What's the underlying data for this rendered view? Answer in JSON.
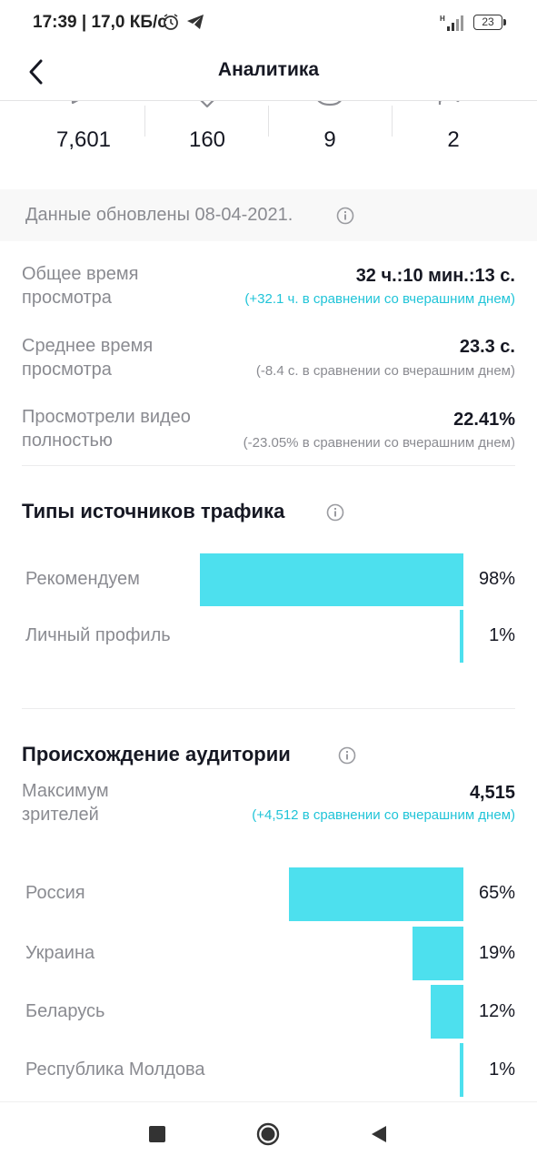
{
  "status_bar": {
    "time_speed": "17:39 | 17,0 КБ/с",
    "battery": "23",
    "icons": [
      "alarm-icon",
      "telegram-icon",
      "signal-icon",
      "battery-icon"
    ]
  },
  "header": {
    "title": "Аналитика",
    "back_icon": "chevron-left-icon"
  },
  "stats": [
    {
      "icon": "play-icon",
      "value": "7,601"
    },
    {
      "icon": "heart-icon",
      "value": "160"
    },
    {
      "icon": "comment-icon",
      "value": "9"
    },
    {
      "icon": "share-icon",
      "value": "2"
    }
  ],
  "updated": {
    "text": "Данные обновлены 08-04-2021."
  },
  "metrics": [
    {
      "label": "Общее время просмотра",
      "value": "32 ч.:10 мин.:13 с.",
      "change": "(+32.1 ч. в сравнении со вчерашним днем)",
      "trend": "positive"
    },
    {
      "label": "Среднее время просмотра",
      "value": "23.3 с.",
      "change": "(-8.4 с. в сравнении со вчерашним днем)",
      "trend": "negative"
    },
    {
      "label": "Просмотрели видео полностью",
      "value": "22.41%",
      "change": "(-23.05% в сравнении со вчерашним днем)",
      "trend": "negative"
    }
  ],
  "traffic": {
    "title": "Типы источников трафика",
    "items": [
      {
        "label": "Рекомендуем",
        "percent": "98%",
        "value": 98
      },
      {
        "label": "Личный профиль",
        "percent": "1%",
        "value": 1
      }
    ]
  },
  "audience": {
    "title": "Происхождение аудитории",
    "max_label": "Максимум зрителей",
    "max_value": "4,515",
    "max_change": "(+4,512 в сравнении со вчерашним днем)",
    "items": [
      {
        "label": "Россия",
        "percent": "65%",
        "value": 65
      },
      {
        "label": "Украина",
        "percent": "19%",
        "value": 19
      },
      {
        "label": "Беларусь",
        "percent": "12%",
        "value": 12
      },
      {
        "label": "Республика Молдова",
        "percent": "1%",
        "value": 1
      }
    ]
  },
  "colors": {
    "accent": "#4de0ee",
    "positive": "#20c4d8",
    "muted": "#8a8b91",
    "text": "#161823"
  },
  "nav": {
    "buttons": [
      "recents-square-icon",
      "home-circle-icon",
      "back-triangle-icon"
    ]
  }
}
